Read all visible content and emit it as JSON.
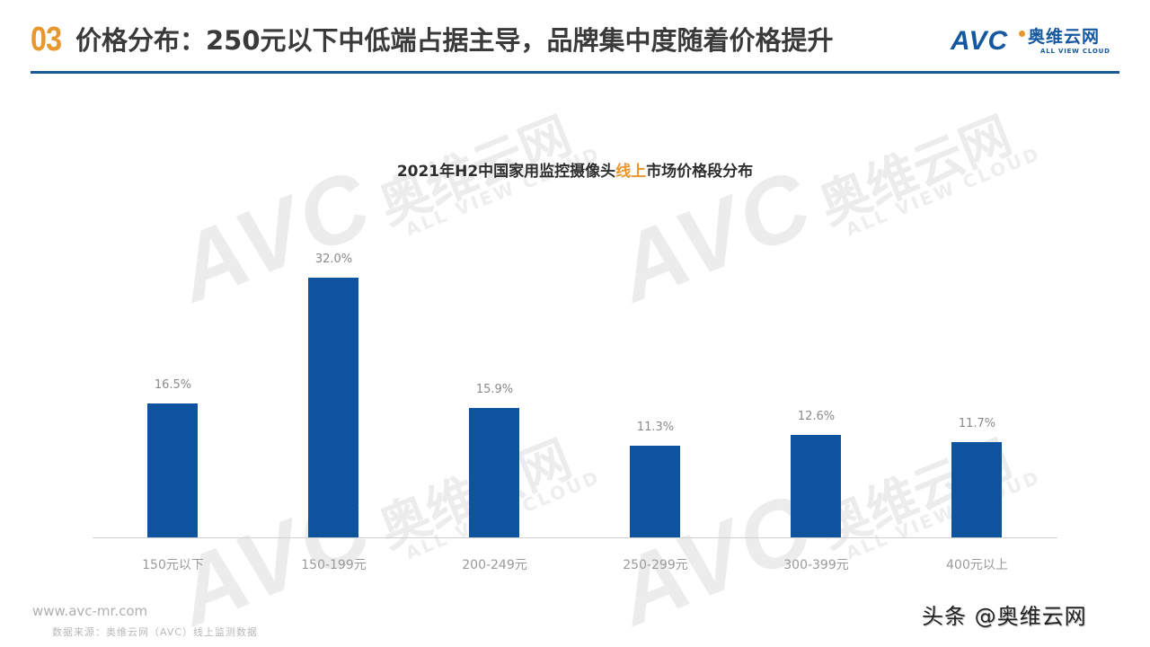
{
  "header": {
    "section_number": "03",
    "title": "价格分布：250元以下中低端占据主导，品牌集中度随着价格提升",
    "accent_color": "#e8962e",
    "rule_color": "#165a96"
  },
  "logo": {
    "mark": "AVC",
    "cn": "奥维云网",
    "en": "ALL VIEW CLOUD"
  },
  "watermark": {
    "mark": "AVC",
    "cn": "奥维云网",
    "en": "ALL VIEW CLOUD"
  },
  "chart": {
    "title_before": "2021年H2中国家用监控摄像头",
    "title_highlight": "线上",
    "title_after": "市场价格段分布",
    "bar_color": "#0e539d",
    "bars": [
      {
        "category": "150元以下",
        "label": "16.5%",
        "value": 16.5
      },
      {
        "category": "150-199元",
        "label": "32.0%",
        "value": 32.0
      },
      {
        "category": "200-249元",
        "label": "15.9%",
        "value": 15.9
      },
      {
        "category": "250-299元",
        "label": "11.3%",
        "value": 11.3
      },
      {
        "category": "300-399元",
        "label": "12.6%",
        "value": 12.6
      },
      {
        "category": "400元以上",
        "label": "11.7%",
        "value": 11.7
      }
    ]
  },
  "chart_data": {
    "type": "bar",
    "title": "2021年H2中国家用监控摄像头线上市场价格段分布",
    "categories": [
      "150元以下",
      "150-199元",
      "200-249元",
      "250-299元",
      "300-399元",
      "400元以上"
    ],
    "values": [
      16.5,
      32.0,
      15.9,
      11.3,
      12.6,
      11.7
    ],
    "unit": "%",
    "xlabel": "",
    "ylabel": "",
    "ylim": [
      0,
      36
    ],
    "grid": false,
    "legend": null,
    "data_labels": true
  },
  "footer": {
    "url": "www.avc-mr.com",
    "source": "数据来源：奥维云网（AVC）线上监测数据",
    "credit": "头条 @奥维云网"
  }
}
